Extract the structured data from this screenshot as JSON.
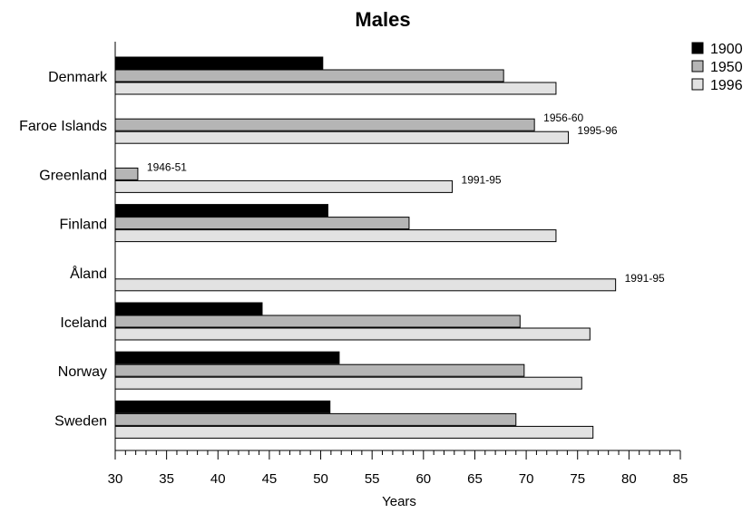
{
  "chart_data": {
    "type": "bar",
    "orientation": "horizontal",
    "title": "Males",
    "xlabel": "Years",
    "ylabel": "",
    "xlim": [
      30,
      85
    ],
    "xticks": [
      "30",
      "35",
      "40",
      "45",
      "50",
      "55",
      "60",
      "65",
      "70",
      "75",
      "80",
      "85"
    ],
    "categories": [
      "Denmark",
      "Faroe Islands",
      "Greenland",
      "Finland",
      "Åland",
      "Iceland",
      "Norway",
      "Sweden"
    ],
    "series": [
      {
        "name": "1900",
        "color": "#000000",
        "values": [
          50.2,
          null,
          null,
          50.7,
          null,
          44.3,
          51.8,
          50.9
        ]
      },
      {
        "name": "1950",
        "color": "#b5b5b5",
        "values": [
          67.8,
          70.8,
          32.2,
          58.6,
          null,
          69.4,
          69.8,
          69.0
        ]
      },
      {
        "name": "1996",
        "color": "#e2e2e2",
        "values": [
          72.9,
          74.1,
          62.8,
          72.9,
          78.7,
          76.2,
          75.4,
          76.5
        ]
      }
    ],
    "annotations": [
      {
        "category": "Faroe Islands",
        "series": "1950",
        "text": "1956-60"
      },
      {
        "category": "Faroe Islands",
        "series": "1996",
        "text": "1995-96"
      },
      {
        "category": "Greenland",
        "series": "1950",
        "text": "1946-51"
      },
      {
        "category": "Greenland",
        "series": "1996",
        "text": "1991-95"
      },
      {
        "category": "Åland",
        "series": "1996",
        "text": "1991-95"
      }
    ],
    "legend": "top-right",
    "grid": false
  }
}
